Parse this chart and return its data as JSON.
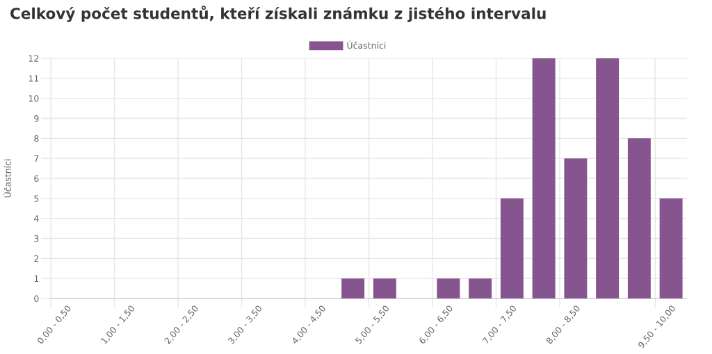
{
  "chart_data": {
    "type": "bar",
    "title": "Celkový počet studentů, kteří získali známku z jistého intervalu",
    "ylabel": "Účastníci",
    "categories": [
      "0,00 - 0,50",
      null,
      "1,00 - 1,50",
      null,
      "2,00 - 2,50",
      null,
      "3,00 - 3,50",
      null,
      "4,00 - 4,50",
      null,
      "5,00 - 5,50",
      null,
      "6,00 - 6,50",
      null,
      "7,00 - 7,50",
      null,
      "8,00 - 8,50",
      null,
      null,
      "9,50 - 10,00"
    ],
    "series": [
      {
        "name": "Účastníci",
        "color": "#86548f",
        "values": [
          0,
          0,
          0,
          0,
          0,
          0,
          0,
          0,
          0,
          1,
          1,
          0,
          1,
          1,
          5,
          12,
          7,
          12,
          8,
          5
        ]
      }
    ],
    "ylim": [
      0,
      12
    ],
    "yticks": [
      0,
      1,
      2,
      3,
      4,
      5,
      6,
      7,
      8,
      9,
      10,
      11,
      12
    ],
    "grid": true,
    "legend": "top"
  }
}
